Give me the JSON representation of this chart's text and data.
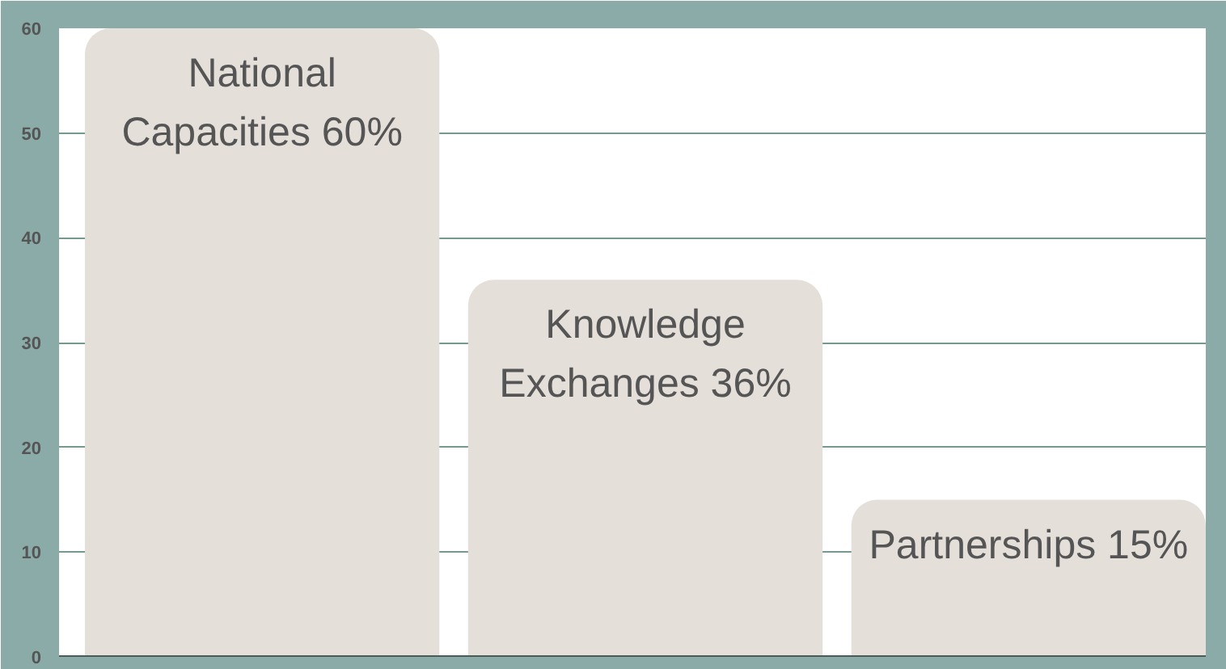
{
  "chart_data": {
    "type": "bar",
    "categories": [
      "National Capacities",
      "Knowledge Exchanges",
      "Partnerships"
    ],
    "values": [
      60,
      36,
      15
    ],
    "value_labels": [
      "60%",
      "36%",
      "15%"
    ],
    "color": "#e5dfd9",
    "ylim": [
      0,
      60
    ],
    "yticks": [
      0,
      10,
      20,
      30,
      40,
      50,
      60
    ],
    "grid": "y"
  }
}
